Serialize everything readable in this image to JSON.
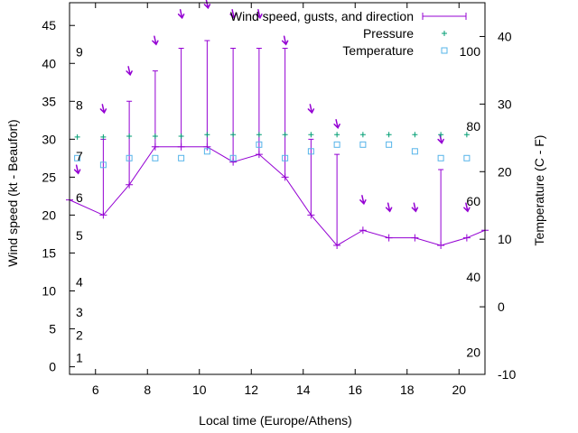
{
  "chart_data": {
    "type": "line",
    "xlabel": "Local time (Europe/Athens)",
    "ylabel_left": "Wind speed (kt - Beaufort)",
    "ylabel_right": "Temperature (C - F)",
    "x_range": [
      5,
      21
    ],
    "y_left_range": [
      -1,
      48
    ],
    "y_right_range": [
      -10,
      45
    ],
    "x_ticks": [
      6,
      8,
      10,
      12,
      14,
      16,
      18,
      20
    ],
    "y_left_ticks": [
      0,
      5,
      10,
      15,
      20,
      25,
      30,
      35,
      40,
      45
    ],
    "y_right_ticks": [
      -10,
      0,
      10,
      20,
      30,
      40
    ],
    "beaufort_labels": [
      {
        "label": "1",
        "kt": 1.2
      },
      {
        "label": "2",
        "kt": 4.2
      },
      {
        "label": "3",
        "kt": 7.2
      },
      {
        "label": "4",
        "kt": 11.2
      },
      {
        "label": "5",
        "kt": 17.3
      },
      {
        "label": "6",
        "kt": 22.3
      },
      {
        "label": "7",
        "kt": 27.8
      },
      {
        "label": "8",
        "kt": 34.5
      },
      {
        "label": "9",
        "kt": 41.5
      }
    ],
    "fahrenheit_labels": [
      {
        "label": "20",
        "c": -6.7
      },
      {
        "label": "40",
        "c": 4.4
      },
      {
        "label": "60",
        "c": 15.6
      },
      {
        "label": "80",
        "c": 26.7
      },
      {
        "label": "100",
        "c": 37.8
      }
    ],
    "legend_position": "top-right",
    "legend": [
      "Wind speed, gusts, and direction",
      "Pressure",
      "Temperature"
    ],
    "colors": {
      "wind": "#9400d3",
      "pressure": "#009e73",
      "temperature": "#56b4e9",
      "axis": "#000000"
    },
    "series": [
      {
        "name": "Wind speed, gusts, and direction",
        "x": [
          5,
          6.3,
          7.3,
          8.3,
          9.3,
          10.3,
          11.3,
          12.3,
          13.3,
          14.3,
          15.3,
          16.3,
          17.3,
          18.3,
          19.3,
          20.3,
          21
        ],
        "values": [
          22,
          20,
          24,
          29,
          29,
          29,
          27,
          28,
          25,
          20,
          16,
          18,
          17,
          17,
          16,
          17,
          18
        ],
        "gusts": [
          null,
          30,
          35,
          39,
          42,
          43,
          42,
          42,
          42,
          30,
          28,
          null,
          null,
          null,
          26,
          null,
          null
        ]
      },
      {
        "name": "Pressure",
        "x": [
          5.3,
          6.3,
          7.3,
          8.3,
          9.3,
          10.3,
          11.3,
          12.3,
          13.3,
          14.3,
          15.3,
          16.3,
          17.3,
          18.3,
          19.3,
          20.3
        ],
        "values": [
          30.3,
          30.3,
          30.4,
          30.4,
          30.4,
          30.6,
          30.6,
          30.6,
          30.6,
          30.6,
          30.6,
          30.6,
          30.6,
          30.6,
          30.6,
          30.6
        ]
      },
      {
        "name": "Temperature",
        "x": [
          5.3,
          6.3,
          7.3,
          8.3,
          9.3,
          10.3,
          11.3,
          12.3,
          13.3,
          14.3,
          15.3,
          16.3,
          17.3,
          18.3,
          19.3,
          20.3
        ],
        "values": [
          22,
          21,
          22,
          22,
          22,
          23,
          22,
          24,
          22,
          23,
          24,
          24,
          24,
          23,
          22,
          22
        ]
      }
    ],
    "direction_arrows": [
      {
        "x": 5.3,
        "y_kt": 25.5
      },
      {
        "x": 6.3,
        "y_kt": 33.5
      },
      {
        "x": 7.3,
        "y_kt": 38.5
      },
      {
        "x": 8.3,
        "y_kt": 42.5
      },
      {
        "x": 9.3,
        "y_kt": 46
      },
      {
        "x": 10.3,
        "y_kt": 47.3
      },
      {
        "x": 11.3,
        "y_kt": 46
      },
      {
        "x": 12.3,
        "y_kt": 46
      },
      {
        "x": 13.3,
        "y_kt": 42.5
      },
      {
        "x": 14.3,
        "y_kt": 33.5
      },
      {
        "x": 15.3,
        "y_kt": 31.5
      },
      {
        "x": 16.3,
        "y_kt": 21.5
      },
      {
        "x": 17.3,
        "y_kt": 20.5
      },
      {
        "x": 18.3,
        "y_kt": 20.5
      },
      {
        "x": 19.3,
        "y_kt": 29.5
      },
      {
        "x": 20.3,
        "y_kt": 20.5
      }
    ]
  }
}
